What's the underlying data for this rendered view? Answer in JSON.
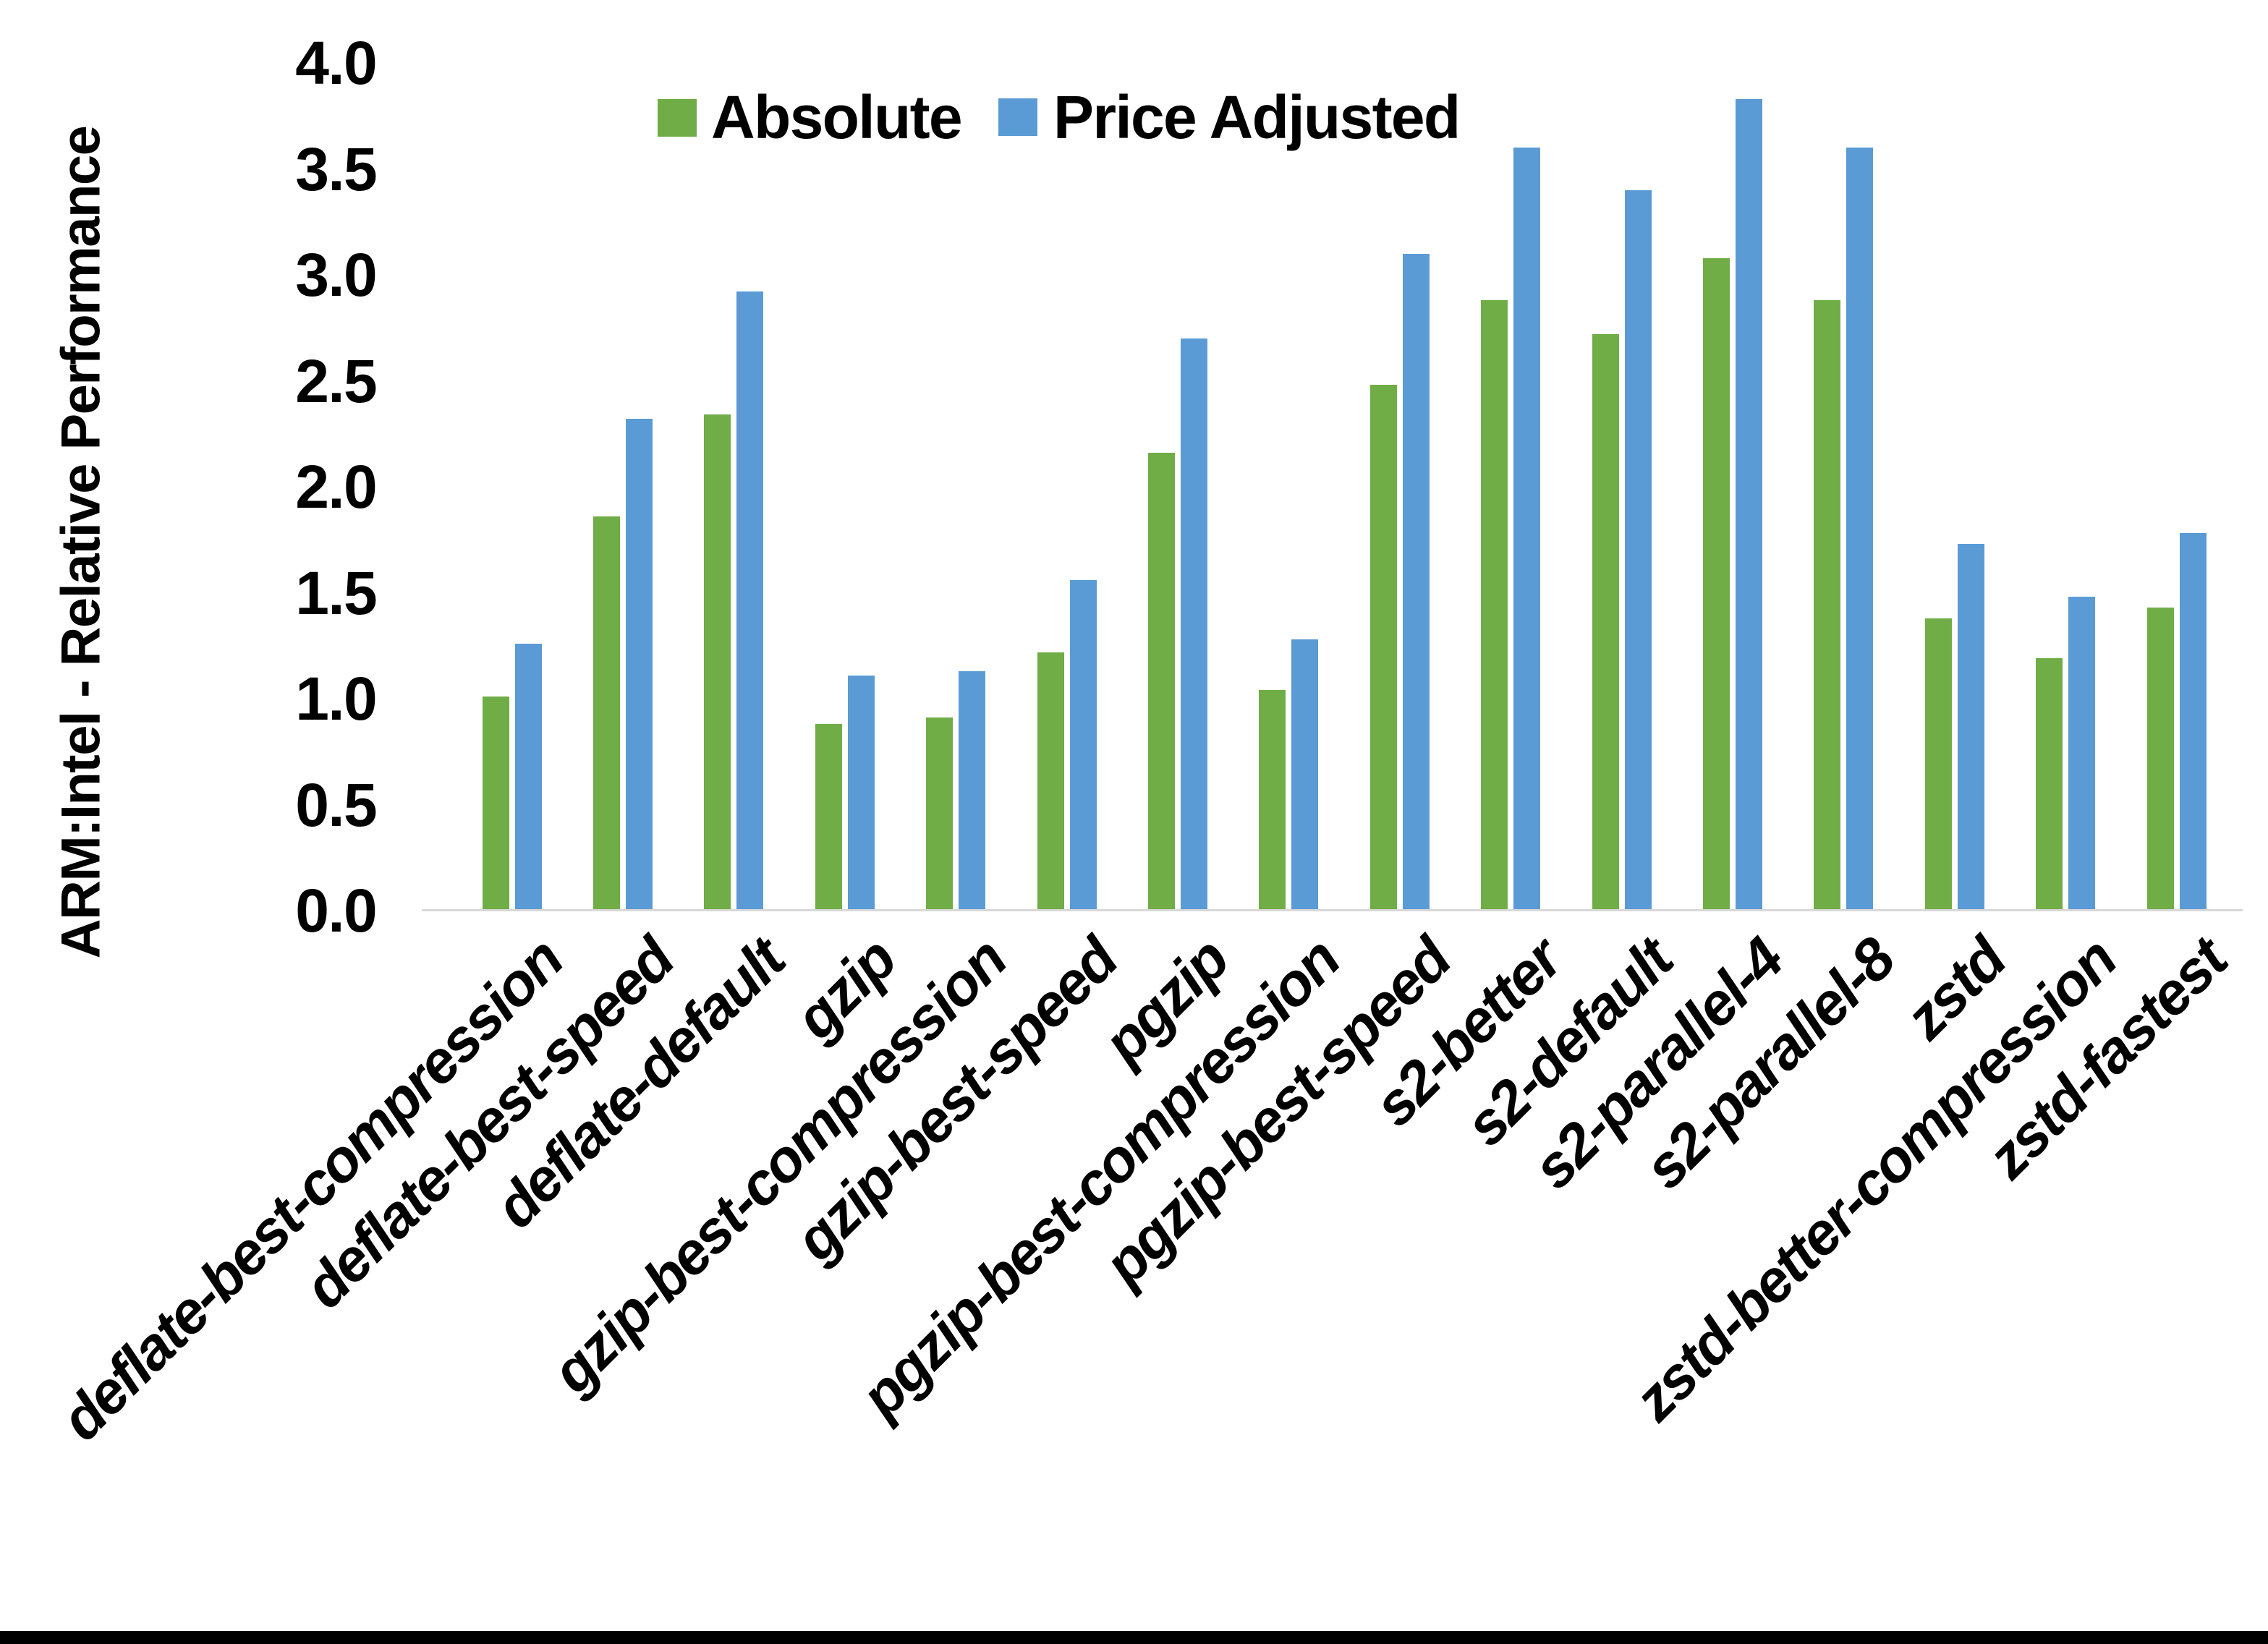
{
  "y_axis": {
    "title": "ARM:Intel - Relative Performance",
    "tick_labels": [
      "4.0",
      "3.5",
      "3.0",
      "2.5",
      "2.0",
      "1.5",
      "1.0",
      "0.5",
      "0.0"
    ]
  },
  "legend": {
    "items": [
      {
        "label": "Absolute",
        "color": "#70AD47"
      },
      {
        "label": "Price Adjusted",
        "color": "#5B9BD5"
      }
    ]
  },
  "chart_data": {
    "type": "bar",
    "title": "",
    "xlabel": "",
    "ylabel": "ARM:Intel - Relative Performance",
    "ylim": [
      0.0,
      4.0
    ],
    "ytick_step": 0.5,
    "grid": false,
    "legend_position": "top-center",
    "axis_line_color": "#D9D9D9",
    "bottom_border_color": "#000000",
    "categories": [
      "deflate-best-compression",
      "deflate-best-speed",
      "deflate-default",
      "gzip",
      "gzip-best-compression",
      "gzip-best-speed",
      "pgzip",
      "pgzip-best-compression",
      "pgzip-best-speed",
      "s2-better",
      "s2-default",
      "s2-parallel-4",
      "s2-parallel-8",
      "zstd",
      "zstd-better-compression",
      "zstd-fastest"
    ],
    "series": [
      {
        "name": "Absolute",
        "color": "#70AD47",
        "values": [
          1.01,
          1.86,
          2.34,
          0.88,
          0.91,
          1.22,
          2.16,
          1.04,
          2.48,
          2.88,
          2.72,
          3.08,
          2.88,
          1.38,
          1.19,
          1.43
        ]
      },
      {
        "name": "Price Adjusted",
        "color": "#5B9BD5",
        "values": [
          1.26,
          2.32,
          2.92,
          1.11,
          1.13,
          1.56,
          2.7,
          1.28,
          3.1,
          3.6,
          3.4,
          3.83,
          3.6,
          1.73,
          1.48,
          1.78
        ]
      }
    ]
  }
}
